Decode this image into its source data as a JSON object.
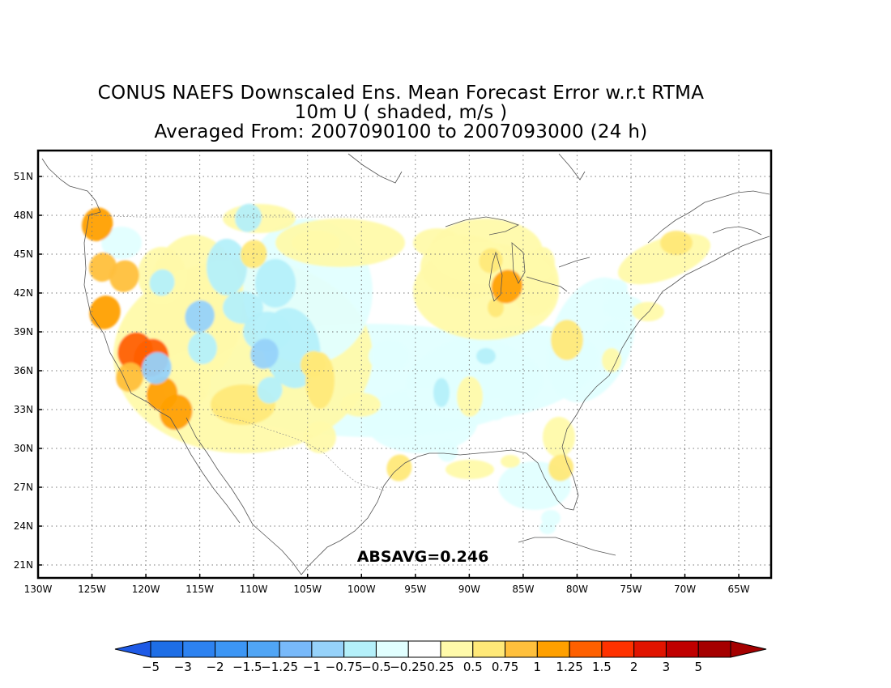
{
  "title": {
    "line1": "CONUS NAEFS Downscaled Ens. Mean Forecast Error w.r.t RTMA",
    "line2": "10m U ( shaded, m/s )",
    "line3": "Averaged From: 2007090100 to 2007093000 (24 h)"
  },
  "map": {
    "lat_labels": [
      "51N",
      "48N",
      "45N",
      "42N",
      "39N",
      "36N",
      "33N",
      "30N",
      "27N",
      "24N",
      "21N"
    ],
    "lon_labels": [
      "130W",
      "125W",
      "120W",
      "115W",
      "110W",
      "105W",
      "100W",
      "95W",
      "90W",
      "85W",
      "80W",
      "75W",
      "70W",
      "65W"
    ],
    "lat_range": [
      20,
      53
    ],
    "lon_range": [
      -130,
      -62
    ],
    "grid": "dotted",
    "annotation": "ABSAVG=0.246"
  },
  "colorbar": {
    "labels": [
      "−5",
      "−3",
      "−2",
      "−1.5",
      "−1.25",
      "−1",
      "−0.75",
      "−0.5",
      "−0.25",
      "0.25",
      "0.5",
      "0.75",
      "1",
      "1.25",
      "1.5",
      "2",
      "3",
      "5"
    ],
    "colors": [
      "#1e6ee6",
      "#2d82f0",
      "#3c96f5",
      "#50a5f5",
      "#78b9fa",
      "#96d2fa",
      "#b4f0fa",
      "#e1ffff",
      "#ffffff",
      "#fffaaa",
      "#ffe978",
      "#ffc03c",
      "#ffa000",
      "#ff6000",
      "#ff3200",
      "#e11400",
      "#c00000",
      "#a50000"
    ],
    "under_color": "#1e5ae6",
    "over_color": "#a50000"
  },
  "chart_data": {
    "type": "heatmap",
    "variable": "10m U forecast error",
    "units": "m/s",
    "title": "CONUS NAEFS Downscaled Ens. Mean Forecast Error w.r.t RTMA",
    "absavg": 0.246,
    "xlim": [
      -130,
      -62
    ],
    "ylim": [
      20,
      53
    ],
    "regions": [
      {
        "lon": -124.5,
        "lat": 47.3,
        "value": 1.0
      },
      {
        "lon": -124.0,
        "lat": 44.0,
        "value": 0.75
      },
      {
        "lon": -122.0,
        "lat": 43.3,
        "value": 0.9
      },
      {
        "lon": -123.8,
        "lat": 40.5,
        "value": 1.0
      },
      {
        "lon": -121.0,
        "lat": 37.5,
        "value": 1.25
      },
      {
        "lon": -119.5,
        "lat": 37.0,
        "value": 1.25
      },
      {
        "lon": -121.5,
        "lat": 35.5,
        "value": 0.75
      },
      {
        "lon": -118.5,
        "lat": 34.2,
        "value": 1.0
      },
      {
        "lon": -117.2,
        "lat": 32.8,
        "value": 1.1
      },
      {
        "lon": -119.0,
        "lat": 36.2,
        "value": -0.9
      },
      {
        "lon": -118.5,
        "lat": 42.8,
        "value": -0.6
      },
      {
        "lon": -115.0,
        "lat": 40.2,
        "value": -0.9
      },
      {
        "lon": -110.5,
        "lat": 47.8,
        "value": -0.7
      },
      {
        "lon": -109.0,
        "lat": 37.3,
        "value": -0.8
      },
      {
        "lon": -108.5,
        "lat": 34.5,
        "value": -0.6
      },
      {
        "lon": -110.0,
        "lat": 45.0,
        "value": 0.7
      },
      {
        "lon": -104.5,
        "lat": 36.5,
        "value": 0.6
      },
      {
        "lon": -96.5,
        "lat": 28.5,
        "value": 0.6
      },
      {
        "lon": -86.5,
        "lat": 42.5,
        "value": 1.0
      },
      {
        "lon": -88.0,
        "lat": 44.5,
        "value": 0.5
      },
      {
        "lon": -81.5,
        "lat": 28.5,
        "value": 0.6
      },
      {
        "lon": -76.5,
        "lat": 39.0,
        "value": -0.5
      },
      {
        "lon": -87.5,
        "lat": 33.0,
        "value": -0.3
      },
      {
        "lon": -92.0,
        "lat": 29.8,
        "value": -0.3
      }
    ]
  }
}
